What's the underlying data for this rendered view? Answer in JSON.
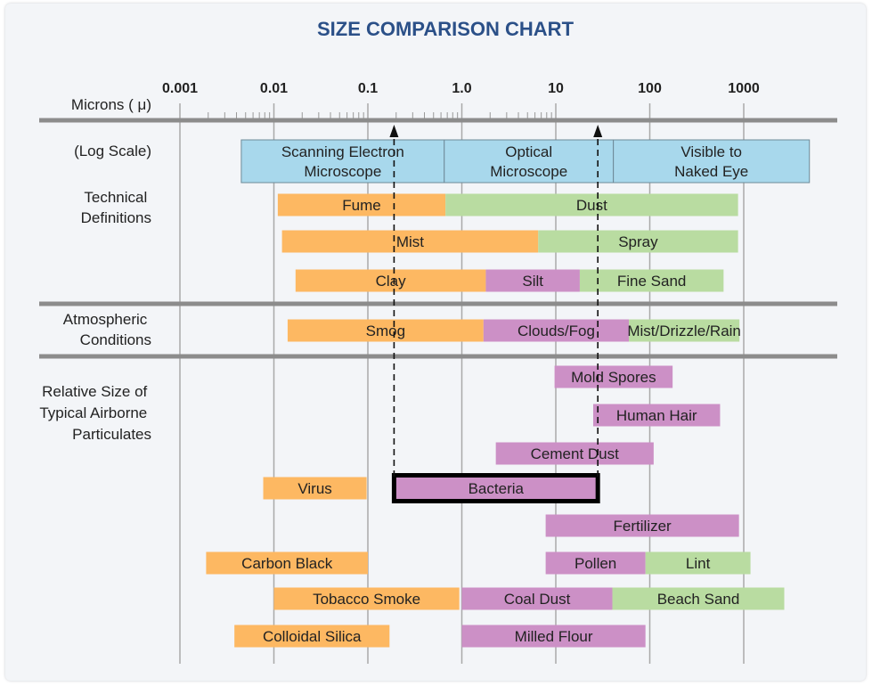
{
  "chart_data": {
    "type": "bar",
    "subtype": "floating-range-bars",
    "title": "SIZE COMPARISON CHART",
    "xlabel": "Microns ( μ)",
    "scale_note": "(Log Scale)",
    "x_scale": "log",
    "xlim": [
      0.001,
      1000
    ],
    "x_ticks": [
      {
        "value": 0.001,
        "label": "0.001"
      },
      {
        "value": 0.01,
        "label": "0.01"
      },
      {
        "value": 0.1,
        "label": "0.1"
      },
      {
        "value": 1,
        "label": "1.0"
      },
      {
        "value": 10,
        "label": "10"
      },
      {
        "value": 100,
        "label": "100"
      },
      {
        "value": 1000,
        "label": "1000"
      }
    ],
    "grid": true,
    "section_labels": [
      {
        "lines": [
          "Technical",
          "Definitions"
        ]
      },
      {
        "lines": [
          "Atmospheric",
          "Conditions"
        ]
      },
      {
        "lines": [
          "Relative Size of",
          "Typical Airborne",
          "Particulates"
        ]
      }
    ],
    "colors": {
      "microscope": "#a8d8ec",
      "orange": "#fdb862",
      "purple": "#cc90c6",
      "green": "#b9dca1",
      "axis": "#8c8c8c",
      "title": "#2b5088"
    },
    "bars": [
      {
        "row": 0,
        "label": "Scanning Electron|Microscope",
        "start": 0.0045,
        "end": 0.65,
        "color": "microscope"
      },
      {
        "row": 0,
        "label": "Optical|Microscope",
        "start": 0.65,
        "end": 41,
        "color": "microscope"
      },
      {
        "row": 0,
        "label": "Visible to|Naked Eye",
        "start": 41,
        "end": 5000,
        "color": "microscope"
      },
      {
        "row": 1,
        "label": "Fume",
        "start": 0.011,
        "end": 0.67,
        "color": "orange"
      },
      {
        "row": 1,
        "label": "Dust",
        "start": 0.67,
        "end": 870,
        "color": "green"
      },
      {
        "row": 2,
        "label": "Mist",
        "start": 0.0122,
        "end": 6.5,
        "color": "orange"
      },
      {
        "row": 2,
        "label": "Spray",
        "start": 6.5,
        "end": 870,
        "color": "green"
      },
      {
        "row": 3,
        "label": "Clay",
        "start": 0.017,
        "end": 1.8,
        "color": "orange"
      },
      {
        "row": 3,
        "label": "Silt",
        "start": 1.8,
        "end": 18,
        "color": "purple"
      },
      {
        "row": 3,
        "label": "Fine Sand",
        "start": 18,
        "end": 610,
        "color": "green"
      },
      {
        "row": 4,
        "label": "Smog",
        "start": 0.014,
        "end": 1.7,
        "color": "orange"
      },
      {
        "row": 4,
        "label": "Clouds/Fog",
        "start": 1.7,
        "end": 60,
        "color": "purple"
      },
      {
        "row": 4,
        "label": "Mist/Drizzle/Rain",
        "start": 60,
        "end": 900,
        "color": "green"
      },
      {
        "row": 5,
        "label": "Mold Spores",
        "start": 9.7,
        "end": 175,
        "color": "purple"
      },
      {
        "row": 6,
        "label": "Human Hair",
        "start": 25,
        "end": 560,
        "color": "purple"
      },
      {
        "row": 7,
        "label": "Cement Dust",
        "start": 2.3,
        "end": 110,
        "color": "purple"
      },
      {
        "row": 8,
        "label": "Virus",
        "start": 0.0077,
        "end": 0.097,
        "color": "orange"
      },
      {
        "row": 8,
        "label": "Bacteria",
        "start": 0.19,
        "end": 28,
        "color": "purple",
        "highlighted": true
      },
      {
        "row": 9,
        "label": "Fertilizer",
        "start": 7.8,
        "end": 890,
        "color": "purple"
      },
      {
        "row": 10,
        "label": "Carbon Black",
        "start": 0.0019,
        "end": 0.1,
        "color": "orange"
      },
      {
        "row": 10,
        "label": "Pollen",
        "start": 7.8,
        "end": 90,
        "color": "purple"
      },
      {
        "row": 10,
        "label": "Lint",
        "start": 90,
        "end": 1180,
        "color": "green"
      },
      {
        "row": 11,
        "label": "Tobacco Smoke",
        "start": 0.01,
        "end": 0.94,
        "color": "orange"
      },
      {
        "row": 11,
        "label": "Coal Dust",
        "start": 1,
        "end": 40,
        "color": "purple"
      },
      {
        "row": 11,
        "label": "Beach Sand",
        "start": 40,
        "end": 2700,
        "color": "green"
      },
      {
        "row": 12,
        "label": "Colloidal Silica",
        "start": 0.0038,
        "end": 0.17,
        "color": "orange"
      },
      {
        "row": 12,
        "label": "Milled Flour",
        "start": 1,
        "end": 90,
        "color": "purple"
      }
    ],
    "reference_arrows": [
      0.19,
      28
    ]
  }
}
